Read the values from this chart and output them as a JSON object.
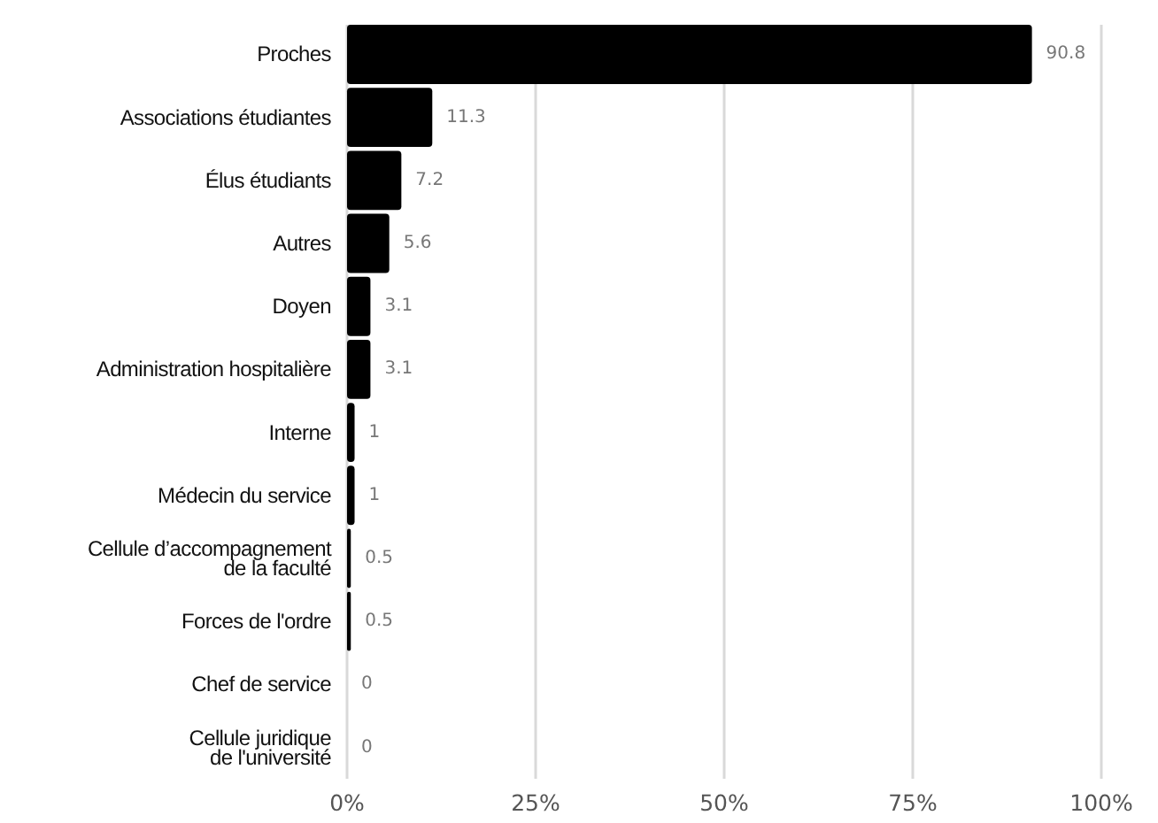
{
  "chart_data": {
    "type": "bar",
    "orientation": "horizontal",
    "categories": [
      "Proches",
      "Associations étudiantes",
      "Élus étudiants",
      "Autres",
      "Doyen",
      "Administration hospitalière",
      "Interne",
      "Médecin du service",
      "Cellule d’accompagnement de la faculté",
      "Forces de l'ordre",
      "Chef de service",
      "Cellule juridique de l'université"
    ],
    "values": [
      90.8,
      11.3,
      7.2,
      5.6,
      3.1,
      3.1,
      1,
      1,
      0.5,
      0.5,
      0,
      0
    ],
    "color": "#000000",
    "xlim": [
      0,
      100
    ],
    "xticks": [
      {
        "value": 0,
        "label": "0%"
      },
      {
        "value": 25,
        "label": "25%"
      },
      {
        "value": 50,
        "label": "50%"
      },
      {
        "value": 75,
        "label": "75%"
      },
      {
        "value": 100,
        "label": "100%"
      }
    ],
    "grid": "x",
    "data_labels": true
  }
}
